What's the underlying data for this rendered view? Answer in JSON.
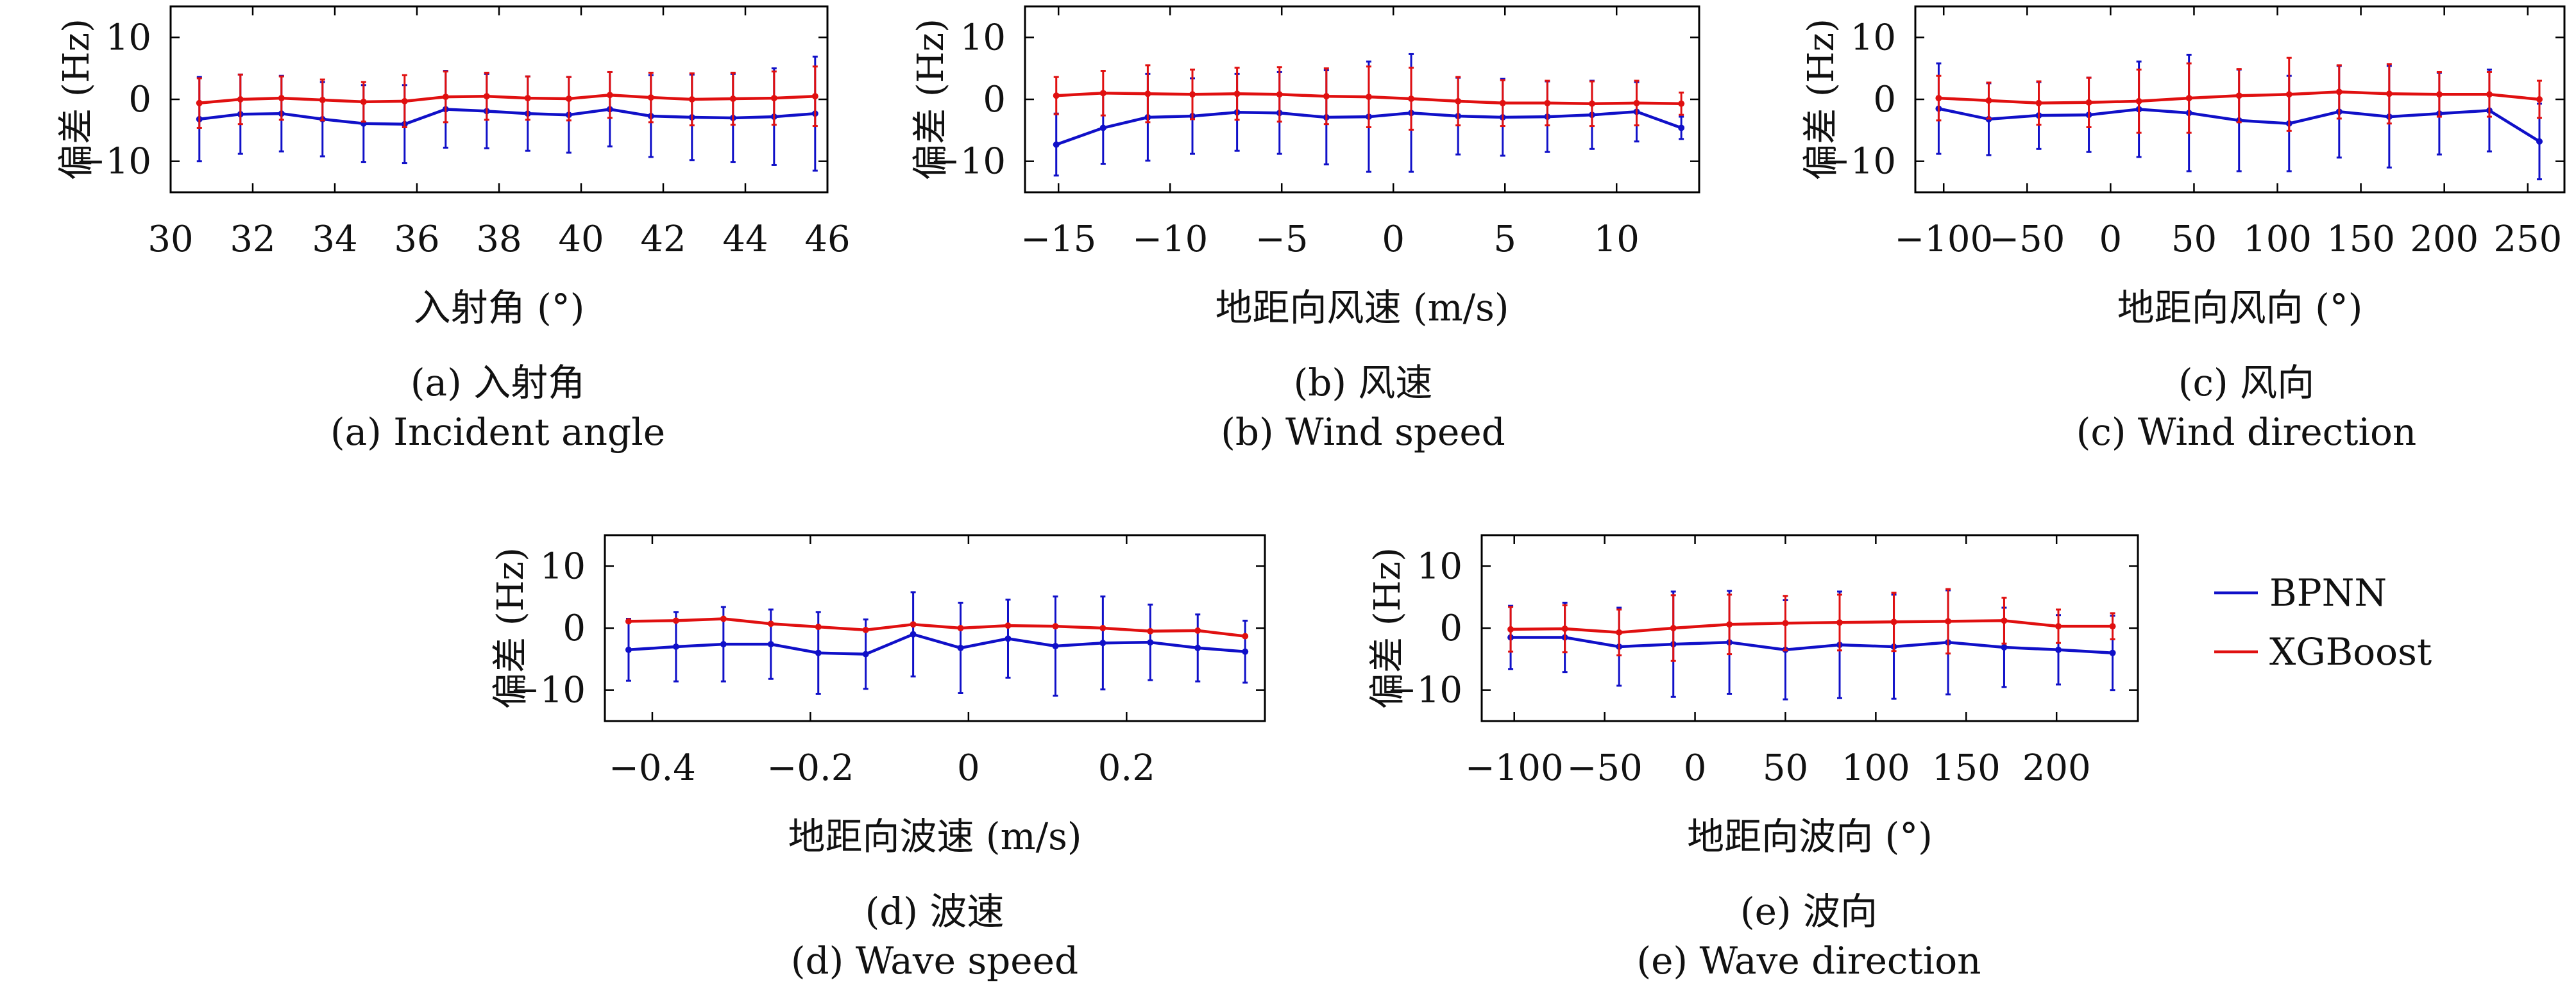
{
  "legend": {
    "entries": [
      {
        "label": "BPNN",
        "color": "#1010c8"
      },
      {
        "label": "XGBoost",
        "color": "#e01010"
      }
    ]
  },
  "chart_data": [
    {
      "type": "line",
      "ylabel": "偏差 (Hz)",
      "xlabel": "入射角 (°)",
      "caption_cn": "(a) 入射角",
      "caption_en": "(a) Incident angle",
      "xlim": [
        30,
        46
      ],
      "ylim": [
        -15,
        15
      ],
      "xticks": [
        30,
        32,
        34,
        36,
        38,
        40,
        42,
        44,
        46
      ],
      "yticks": [
        10,
        0,
        -10
      ],
      "x": [
        30.7,
        31.7,
        32.7,
        33.7,
        34.7,
        35.7,
        36.7,
        37.7,
        38.7,
        39.7,
        40.7,
        41.7,
        42.7,
        43.7,
        44.7,
        45.7
      ],
      "series": [
        {
          "name": "BPNN",
          "y": [
            -3.2,
            -2.4,
            -2.3,
            -3.2,
            -3.9,
            -4.0,
            -1.6,
            -1.9,
            -2.3,
            -2.5,
            -1.6,
            -2.7,
            -2.9,
            -3.0,
            -2.8,
            -2.3
          ],
          "err": [
            6.8,
            6.4,
            6.1,
            6.0,
            6.2,
            6.3,
            6.2,
            6.0,
            6.0,
            6.1,
            6.0,
            6.6,
            6.9,
            7.1,
            7.8,
            9.2
          ]
        },
        {
          "name": "XGBoost",
          "y": [
            -0.6,
            0.0,
            0.2,
            -0.1,
            -0.4,
            -0.3,
            0.4,
            0.5,
            0.2,
            0.1,
            0.7,
            0.3,
            0.0,
            0.1,
            0.2,
            0.5
          ],
          "err": [
            4.0,
            4.0,
            3.5,
            3.3,
            3.2,
            4.2,
            4.1,
            3.8,
            3.5,
            3.5,
            3.7,
            4.0,
            4.2,
            4.2,
            4.3,
            4.8
          ]
        }
      ]
    },
    {
      "type": "line",
      "ylabel": "偏差 (Hz)",
      "xlabel": "地距向风速 (m/s)",
      "caption_cn": "(b) 风速",
      "caption_en": "(b) Wind speed",
      "xlim": [
        -16.5,
        13.7
      ],
      "ylim": [
        -15,
        15
      ],
      "xticks": [
        -15,
        -10,
        -5,
        0,
        5,
        10
      ],
      "yticks": [
        10,
        0,
        -10
      ],
      "x": [
        -15.1,
        -13.0,
        -11.0,
        -9.0,
        -7.0,
        -5.1,
        -3.0,
        -1.1,
        0.8,
        2.9,
        4.9,
        6.9,
        8.9,
        10.9,
        12.9
      ],
      "series": [
        {
          "name": "BPNN",
          "y": [
            -7.3,
            -4.6,
            -2.9,
            -2.7,
            -2.1,
            -2.2,
            -2.9,
            -2.8,
            -2.2,
            -2.7,
            -2.9,
            -2.8,
            -2.5,
            -2.0,
            -4.6
          ],
          "err": [
            5.0,
            5.8,
            7.0,
            6.1,
            6.2,
            6.6,
            7.6,
            8.9,
            9.5,
            6.2,
            6.2,
            5.7,
            5.5,
            4.8,
            1.8
          ]
        },
        {
          "name": "XGBoost",
          "y": [
            0.6,
            1.0,
            0.9,
            0.8,
            0.9,
            0.8,
            0.5,
            0.4,
            0.1,
            -0.3,
            -0.6,
            -0.6,
            -0.7,
            -0.6,
            -0.7
          ],
          "err": [
            3.0,
            3.6,
            4.6,
            4.0,
            4.2,
            4.4,
            4.5,
            4.9,
            5.0,
            3.9,
            3.7,
            3.6,
            3.6,
            3.6,
            1.8
          ]
        }
      ]
    },
    {
      "type": "line",
      "ylabel": "偏差 (Hz)",
      "xlabel": "地距向风向 (°)",
      "caption_cn": "(c) 风向",
      "caption_en": "(c) Wind direction",
      "xlim": [
        -117,
        272
      ],
      "ylim": [
        -15,
        15
      ],
      "xticks": [
        -100,
        -50,
        0,
        50,
        100,
        150,
        200,
        250
      ],
      "yticks": [
        10,
        0,
        -10
      ],
      "x": [
        -103,
        -73,
        -43,
        -13,
        17,
        47,
        77,
        107,
        137,
        167,
        197,
        227,
        257
      ],
      "series": [
        {
          "name": "BPNN",
          "y": [
            -1.5,
            -3.2,
            -2.6,
            -2.5,
            -1.6,
            -2.2,
            -3.4,
            -3.9,
            -2.0,
            -2.8,
            -2.3,
            -1.8,
            -6.8
          ],
          "err": [
            7.3,
            5.8,
            5.4,
            6.0,
            7.7,
            9.4,
            8.2,
            7.7,
            7.4,
            8.2,
            6.6,
            6.6,
            6.1
          ]
        },
        {
          "name": "XGBoost",
          "y": [
            0.2,
            -0.2,
            -0.6,
            -0.5,
            -0.3,
            0.2,
            0.6,
            0.8,
            1.2,
            0.9,
            0.8,
            0.8,
            0.0
          ],
          "err": [
            3.6,
            2.9,
            3.5,
            4.0,
            5.1,
            5.6,
            4.3,
            5.9,
            4.3,
            4.8,
            3.6,
            3.6,
            3.0
          ]
        }
      ]
    },
    {
      "type": "line",
      "ylabel": "偏差 (Hz)",
      "xlabel": "地距向波速 (m/s)",
      "caption_cn": "(d) 波速",
      "caption_en": "(d) Wave speed",
      "xlim": [
        -0.46,
        0.375
      ],
      "ylim": [
        -15,
        15
      ],
      "xticks": [
        -0.4,
        -0.2,
        0,
        0.2
      ],
      "yticks": [
        10,
        0,
        -10
      ],
      "x": [
        -0.43,
        -0.37,
        -0.31,
        -0.25,
        -0.19,
        -0.13,
        -0.07,
        -0.01,
        0.05,
        0.11,
        0.17,
        0.23,
        0.29,
        0.35
      ],
      "series": [
        {
          "name": "BPNN",
          "y": [
            -3.5,
            -3.0,
            -2.6,
            -2.6,
            -4.0,
            -4.2,
            -1.0,
            -3.2,
            -1.7,
            -2.9,
            -2.4,
            -2.3,
            -3.2,
            -3.8
          ],
          "err": [
            5.0,
            5.6,
            6.0,
            5.6,
            6.6,
            5.6,
            6.8,
            7.3,
            6.3,
            8.0,
            7.5,
            6.1,
            5.4,
            5.0
          ]
        },
        {
          "name": "XGBoost",
          "y": [
            1.1,
            1.2,
            1.5,
            0.7,
            0.2,
            -0.3,
            0.6,
            0.0,
            0.4,
            0.3,
            0.0,
            -0.5,
            -0.4,
            -1.3
          ]
        }
      ]
    },
    {
      "type": "line",
      "ylabel": "偏差 (Hz)",
      "xlabel": "地距向波向 (°)",
      "caption_cn": "(e) 波向",
      "caption_en": "(e) Wave direction",
      "xlim": [
        -118,
        245
      ],
      "ylim": [
        -15,
        15
      ],
      "xticks": [
        -100,
        -50,
        0,
        50,
        100,
        150,
        200
      ],
      "yticks": [
        10,
        0,
        -10
      ],
      "x": [
        -102,
        -72,
        -42,
        -12,
        19,
        50,
        80,
        110,
        140,
        171,
        201,
        231
      ],
      "series": [
        {
          "name": "BPNN",
          "y": [
            -1.5,
            -1.5,
            -3.0,
            -2.6,
            -2.3,
            -3.5,
            -2.7,
            -3.0,
            -2.3,
            -3.1,
            -3.5,
            -4.0
          ],
          "err": [
            5.1,
            5.6,
            6.3,
            8.5,
            8.3,
            8.0,
            8.6,
            8.4,
            8.4,
            6.4,
            5.6,
            6.0
          ]
        },
        {
          "name": "XGBoost",
          "y": [
            -0.2,
            -0.1,
            -0.7,
            0.0,
            0.6,
            0.8,
            0.9,
            1.0,
            1.1,
            1.2,
            0.3,
            0.3
          ],
          "err": [
            3.6,
            3.8,
            3.7,
            5.3,
            4.8,
            4.4,
            4.5,
            4.7,
            5.2,
            3.7,
            2.7,
            2.1
          ]
        }
      ]
    }
  ]
}
